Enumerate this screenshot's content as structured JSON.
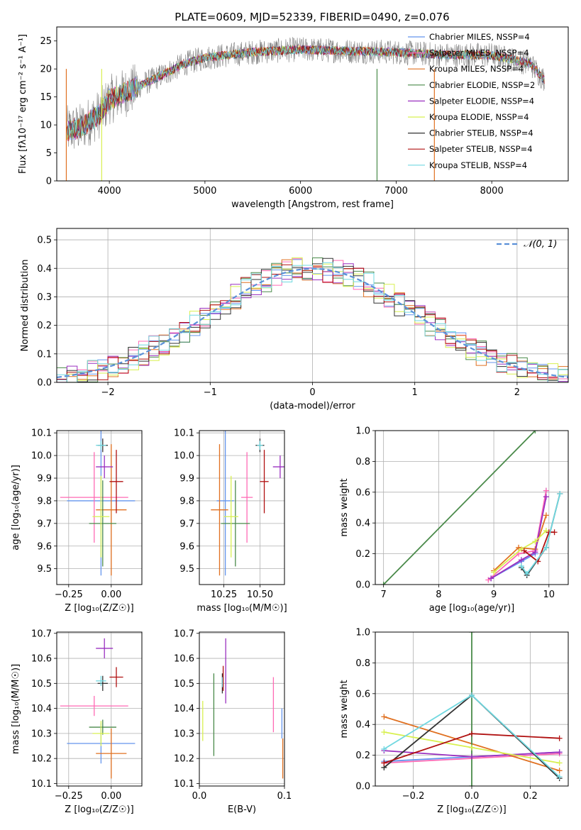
{
  "figure": {
    "title": "PLATE=0609, MJD=52339, FIBERID=0490, z=0.076"
  },
  "chart_data": [
    {
      "id": "spectrum",
      "type": "line",
      "xlabel": "wavelength [Angstrom, rest frame]",
      "ylabel": "Flux [fλ10⁻¹⁷ erg cm⁻² s⁻¹ A⁻¹]",
      "xlim": [
        3450,
        8800
      ],
      "ylim": [
        0,
        27.5
      ],
      "xticks": [
        4000,
        5000,
        6000,
        7000,
        8000
      ],
      "yticks": [
        0,
        5,
        10,
        15,
        20,
        25
      ],
      "grid": false,
      "legend_position": "right",
      "continuum": {
        "x": [
          3550,
          3700,
          3900,
          4000,
          4200,
          4500,
          4800,
          5000,
          5500,
          6000,
          6500,
          7000,
          7500,
          8000,
          8400,
          8550
        ],
        "y": [
          9,
          9.5,
          12,
          14.5,
          16,
          18.5,
          21,
          22,
          23,
          23.5,
          23.2,
          23,
          22.5,
          22.5,
          21,
          18
        ]
      },
      "series": [
        {
          "name": "Chabrier MILES, N_SSP=4",
          "color": "#6495ed"
        },
        {
          "name": "Salpeter MILES, N_SSP=4",
          "color": "#ff69b4"
        },
        {
          "name": "Kroupa MILES, N_SSP=4",
          "color": "#e07020"
        },
        {
          "name": "Chabrier ELODIE, N_SSP=2",
          "color": "#4a8a4a"
        },
        {
          "name": "Salpeter ELODIE, N_SSP=4",
          "color": "#9a30c0"
        },
        {
          "name": "Kroupa ELODIE, N_SSP=4",
          "color": "#d8f050"
        },
        {
          "name": "Chabrier STELIB, N_SSP=4",
          "color": "#333333"
        },
        {
          "name": "Salpeter STELIB, N_SSP=4",
          "color": "#b01010"
        },
        {
          "name": "Kroupa STELIB, N_SSP=4",
          "color": "#70d8e0"
        }
      ],
      "data_color": "#808080"
    },
    {
      "id": "residuals",
      "type": "histogram",
      "xlabel": "(data-model)/error",
      "ylabel": "Normed distribution",
      "xlim": [
        -2.5,
        2.5
      ],
      "ylim": [
        0,
        0.54
      ],
      "xticks": [
        -2,
        -1,
        0,
        1,
        2
      ],
      "yticks": [
        0.0,
        0.1,
        0.2,
        0.3,
        0.4,
        0.5
      ],
      "grid": true,
      "bin_width": 0.1,
      "reference": {
        "label": "𝒩(0, 1)",
        "color": "#5a90d8",
        "mean": 0,
        "sigma": 1
      },
      "legend_position": "top-right"
    },
    {
      "id": "age-vs-Z",
      "type": "errorbar",
      "xlabel": "Z [log₁₀(Z/Z☉)]",
      "ylabel": "age  [log₁₀(age/yr)]",
      "xlim": [
        -0.32,
        0.18
      ],
      "ylim": [
        9.43,
        10.11
      ],
      "xticks": [
        -0.25,
        0.0
      ],
      "xticklabels": [
        "−0.25",
        "0.00"
      ],
      "yticks": [
        9.5,
        9.6,
        9.7,
        9.8,
        9.9,
        10.0,
        10.1
      ],
      "grid": true,
      "points": [
        {
          "series": "Chabrier MILES",
          "x": -0.06,
          "xerr": 0.2,
          "y": 9.8,
          "yerr": 0.33
        },
        {
          "series": "Salpeter MILES",
          "x": -0.1,
          "xerr": 0.2,
          "y": 9.815,
          "yerr": 0.2
        },
        {
          "series": "Kroupa MILES",
          "x": 0.0,
          "xerr": 0.09,
          "y": 9.76,
          "yerr": 0.29
        },
        {
          "series": "Chabrier ELODIE",
          "x": -0.05,
          "xerr": 0.08,
          "y": 9.7,
          "yerr": 0.19
        },
        {
          "series": "Salpeter ELODIE",
          "x": -0.04,
          "xerr": 0.05,
          "y": 9.95,
          "yerr": 0.05
        },
        {
          "series": "Kroupa ELODIE",
          "x": -0.06,
          "xerr": 0.05,
          "y": 9.73,
          "yerr": 0.18
        },
        {
          "series": "Chabrier STELIB",
          "x": -0.05,
          "xerr": 0.03,
          "y": 10.045,
          "yerr": 0.03
        },
        {
          "series": "Salpeter STELIB",
          "x": 0.03,
          "xerr": 0.04,
          "y": 9.885,
          "yerr": 0.14
        },
        {
          "series": "Kroupa STELIB",
          "x": -0.06,
          "xerr": 0.03,
          "y": 10.045,
          "yerr": 0.02
        }
      ]
    },
    {
      "id": "age-vs-mass",
      "type": "errorbar",
      "xlabel": "mass [log₁₀(M/M☉)]",
      "ylabel": "",
      "xlim": [
        10.08,
        10.67
      ],
      "ylim": [
        9.43,
        10.11
      ],
      "xticks": [
        10.25,
        10.5
      ],
      "xticklabels": [
        "10.25",
        "10.50"
      ],
      "yticks": [
        9.5,
        9.6,
        9.7,
        9.8,
        9.9,
        10.0,
        10.1
      ],
      "grid": true,
      "points": [
        {
          "series": "Chabrier MILES",
          "x": 10.26,
          "xerr": 0.06,
          "y": 9.8,
          "yerr": 0.33
        },
        {
          "series": "Salpeter MILES",
          "x": 10.41,
          "xerr": 0.04,
          "y": 9.815,
          "yerr": 0.2
        },
        {
          "series": "Kroupa MILES",
          "x": 10.22,
          "xerr": 0.06,
          "y": 9.76,
          "yerr": 0.29
        },
        {
          "series": "Chabrier ELODIE",
          "x": 10.33,
          "xerr": 0.1,
          "y": 9.7,
          "yerr": 0.19
        },
        {
          "series": "Salpeter ELODIE",
          "x": 10.64,
          "xerr": 0.05,
          "y": 9.95,
          "yerr": 0.05
        },
        {
          "series": "Kroupa ELODIE",
          "x": 10.3,
          "xerr": 0.05,
          "y": 9.73,
          "yerr": 0.18
        },
        {
          "series": "Chabrier STELIB",
          "x": 10.5,
          "xerr": 0.03,
          "y": 10.045,
          "yerr": 0.03
        },
        {
          "series": "Salpeter STELIB",
          "x": 10.53,
          "xerr": 0.03,
          "y": 9.885,
          "yerr": 0.14
        },
        {
          "series": "Kroupa STELIB",
          "x": 10.5,
          "xerr": 0.02,
          "y": 10.045,
          "yerr": 0.02
        }
      ]
    },
    {
      "id": "weight-vs-age",
      "type": "line",
      "xlabel": "age  [log₁₀(age/yr)]",
      "ylabel": "mass weight",
      "xlim": [
        6.85,
        10.35
      ],
      "ylim": [
        0,
        1.0
      ],
      "xticks": [
        7,
        8,
        9,
        10
      ],
      "yticks": [
        0.0,
        0.2,
        0.4,
        0.6,
        0.8,
        1.0
      ],
      "grid": true,
      "series": [
        {
          "name": "Chabrier MILES",
          "x": [
            8.95,
            9.5,
            9.75,
            9.95
          ],
          "y": [
            0.04,
            0.15,
            0.2,
            0.61
          ]
        },
        {
          "name": "Salpeter MILES",
          "x": [
            8.9,
            9.45,
            9.75,
            9.95
          ],
          "y": [
            0.03,
            0.2,
            0.22,
            0.61
          ]
        },
        {
          "name": "Kroupa MILES",
          "x": [
            9.0,
            9.45,
            9.75,
            9.95
          ],
          "y": [
            0.09,
            0.24,
            0.23,
            0.45
          ]
        },
        {
          "name": "Chabrier ELODIE",
          "x": [
            7.0,
            9.75
          ],
          "y": [
            0.0,
            1.0
          ]
        },
        {
          "name": "Salpeter ELODIE",
          "x": [
            8.95,
            9.5,
            9.75,
            9.95
          ],
          "y": [
            0.04,
            0.16,
            0.21,
            0.57
          ]
        },
        {
          "name": "Kroupa ELODIE",
          "x": [
            9.0,
            9.5,
            9.75,
            9.95
          ],
          "y": [
            0.08,
            0.23,
            0.28,
            0.35
          ]
        },
        {
          "name": "Chabrier STELIB",
          "x": [
            9.5,
            9.6,
            9.95,
            10.2
          ],
          "y": [
            0.11,
            0.06,
            0.24,
            0.59
          ]
        },
        {
          "name": "Salpeter STELIB",
          "x": [
            9.55,
            9.8,
            10.0,
            10.1
          ],
          "y": [
            0.22,
            0.15,
            0.34,
            0.34
          ]
        },
        {
          "name": "Kroupa STELIB",
          "x": [
            9.5,
            9.6,
            9.95,
            10.2
          ],
          "y": [
            0.12,
            0.07,
            0.24,
            0.59
          ]
        }
      ]
    },
    {
      "id": "mass-vs-Z",
      "type": "errorbar",
      "xlabel": "Z [log₁₀(Z/Z☉)]",
      "ylabel": "mass [log₁₀(M/M☉)]",
      "xlim": [
        -0.32,
        0.18
      ],
      "ylim": [
        10.09,
        10.705
      ],
      "xticks": [
        -0.25,
        0.0
      ],
      "xticklabels": [
        "−0.25",
        "0.00"
      ],
      "yticks": [
        10.1,
        10.2,
        10.3,
        10.4,
        10.5,
        10.6,
        10.7
      ],
      "grid": true,
      "points": [
        {
          "series": "Chabrier MILES",
          "x": -0.06,
          "xerr": 0.2,
          "y": 10.26,
          "yerr": 0.08
        },
        {
          "series": "Salpeter MILES",
          "x": -0.1,
          "xerr": 0.2,
          "y": 10.41,
          "yerr": 0.04
        },
        {
          "series": "Kroupa MILES",
          "x": 0.0,
          "xerr": 0.09,
          "y": 10.22,
          "yerr": 0.1
        },
        {
          "series": "Chabrier ELODIE",
          "x": -0.05,
          "xerr": 0.08,
          "y": 10.325,
          "yerr": 0.03
        },
        {
          "series": "Salpeter ELODIE",
          "x": -0.04,
          "xerr": 0.05,
          "y": 10.64,
          "yerr": 0.04
        },
        {
          "series": "Kroupa ELODIE",
          "x": -0.06,
          "xerr": 0.05,
          "y": 10.3,
          "yerr": 0.05
        },
        {
          "series": "Chabrier STELIB",
          "x": -0.05,
          "xerr": 0.03,
          "y": 10.5,
          "yerr": 0.03
        },
        {
          "series": "Salpeter STELIB",
          "x": 0.03,
          "xerr": 0.04,
          "y": 10.525,
          "yerr": 0.04
        },
        {
          "series": "Kroupa STELIB",
          "x": -0.06,
          "xerr": 0.03,
          "y": 10.51,
          "yerr": 0.02
        }
      ]
    },
    {
      "id": "mass-vs-ebv",
      "type": "errorbar",
      "xlabel": "E(B-V)",
      "ylabel": "",
      "xlim": [
        0.0,
        0.1
      ],
      "ylim": [
        10.09,
        10.705
      ],
      "xticks": [
        0.0,
        0.1
      ],
      "xticklabels": [
        "0.0",
        "0.1"
      ],
      "yticks": [
        10.1,
        10.2,
        10.3,
        10.4,
        10.5,
        10.6,
        10.7
      ],
      "grid": true,
      "points": [
        {
          "series": "Chabrier MILES",
          "x": 0.097,
          "y": 10.34,
          "yerr": 0.06
        },
        {
          "series": "Salpeter MILES",
          "x": 0.087,
          "y": 10.415,
          "yerr": 0.11
        },
        {
          "series": "Kroupa MILES",
          "x": 0.098,
          "y": 10.2,
          "yerr": 0.08
        },
        {
          "series": "Chabrier ELODIE",
          "x": 0.017,
          "y": 10.375,
          "yerr": 0.165
        },
        {
          "series": "Salpeter ELODIE",
          "x": 0.031,
          "y": 10.55,
          "yerr": 0.13
        },
        {
          "series": "Kroupa ELODIE",
          "x": 0.004,
          "y": 10.35,
          "yerr": 0.08
        },
        {
          "series": "Chabrier STELIB",
          "x": 0.027,
          "y": 10.5,
          "yerr": 0.04
        },
        {
          "series": "Salpeter STELIB",
          "x": 0.028,
          "y": 10.52,
          "yerr": 0.05
        },
        {
          "series": "Kroupa STELIB",
          "x": 0.027,
          "y": 10.505,
          "yerr": 0.02
        }
      ]
    },
    {
      "id": "weight-vs-Z",
      "type": "line",
      "xlabel": "Z [log₁₀(Z/Z☉)]",
      "ylabel": "mass weight",
      "xlim": [
        -0.33,
        0.33
      ],
      "ylim": [
        0,
        1.0
      ],
      "xticks": [
        -0.2,
        0.0,
        0.2
      ],
      "xticklabels": [
        "−0.2",
        "0.0",
        "0.2"
      ],
      "yticks": [
        0.0,
        0.2,
        0.4,
        0.6,
        0.8,
        1.0
      ],
      "grid": true,
      "series": [
        {
          "name": "Chabrier MILES",
          "x": [
            -0.3,
            0.3
          ],
          "y": [
            0.16,
            0.22
          ]
        },
        {
          "name": "Salpeter MILES",
          "x": [
            -0.3,
            0.3
          ],
          "y": [
            0.15,
            0.21
          ]
        },
        {
          "name": "Kroupa MILES",
          "x": [
            -0.3,
            0.3
          ],
          "y": [
            0.45,
            0.1
          ]
        },
        {
          "name": "Chabrier ELODIE",
          "x": [
            0.0,
            0.0
          ],
          "y": [
            0.0,
            1.0
          ]
        },
        {
          "name": "Salpeter ELODIE",
          "x": [
            -0.3,
            0.0,
            0.3
          ],
          "y": [
            0.23,
            0.19,
            0.22
          ]
        },
        {
          "name": "Kroupa ELODIE",
          "x": [
            -0.3,
            0.0,
            0.3
          ],
          "y": [
            0.35,
            0.25,
            0.15
          ]
        },
        {
          "name": "Chabrier STELIB",
          "x": [
            -0.3,
            0.0,
            0.3
          ],
          "y": [
            0.12,
            0.59,
            0.05
          ]
        },
        {
          "name": "Salpeter STELIB",
          "x": [
            -0.3,
            0.0,
            0.3
          ],
          "y": [
            0.15,
            0.34,
            0.31
          ]
        },
        {
          "name": "Kroupa STELIB",
          "x": [
            -0.3,
            0.0,
            0.3
          ],
          "y": [
            0.24,
            0.59,
            0.06
          ]
        }
      ]
    }
  ]
}
